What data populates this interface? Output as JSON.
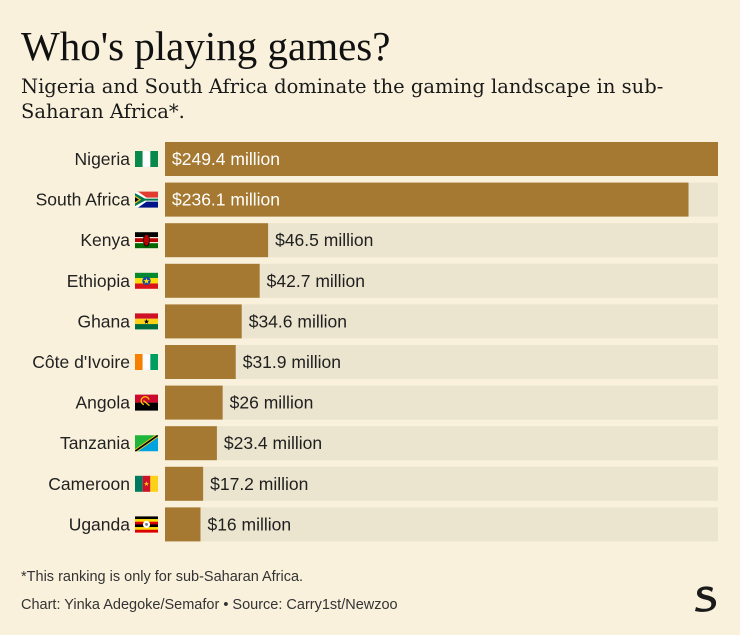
{
  "title": "Who's playing games?",
  "subtitle": "Nigeria and South Africa dominate the gaming landscape in sub-Saharan Africa*.",
  "footnote": "*This ranking is only for sub-Saharan Africa.",
  "credit": "Chart: Yinka Adegoke/Semafor • Source: Carry1st/Newzoo",
  "colors": {
    "bar": "#a57931",
    "track": "#ebe4ce",
    "background": "#f9f1dc",
    "inside_label": "#ffffff",
    "outside_label": "#1f1f1f"
  },
  "chart_data": {
    "type": "bar",
    "orientation": "horizontal",
    "categories": [
      "Nigeria",
      "South Africa",
      "Kenya",
      "Ethiopia",
      "Ghana",
      "Côte d'Ivoire",
      "Angola",
      "Tanzania",
      "Cameroon",
      "Uganda"
    ],
    "values": [
      249.4,
      236.1,
      46.5,
      42.7,
      34.6,
      31.9,
      26,
      23.4,
      17.2,
      16
    ],
    "value_labels": [
      "$249.4 million",
      "$236.1 million",
      "$46.5 million",
      "$42.7 million",
      "$34.6 million",
      "$31.9 million",
      "$26 million",
      "$23.4 million",
      "$17.2 million",
      "$16 million"
    ],
    "flags": [
      "nigeria-flag-icon",
      "south-africa-flag-icon",
      "kenya-flag-icon",
      "ethiopia-flag-icon",
      "ghana-flag-icon",
      "cote-divoire-flag-icon",
      "angola-flag-icon",
      "tanzania-flag-icon",
      "cameroon-flag-icon",
      "uganda-flag-icon"
    ],
    "xlim": [
      0,
      249.4
    ],
    "grid": false,
    "legend": "none"
  }
}
